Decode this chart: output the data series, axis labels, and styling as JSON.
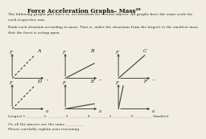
{
  "title": "Force Acceleration Graphs– Mass²⁶",
  "subtitle1": "The following graphs plot force vs. acceleration for several objects. All graphs have the same scale for",
  "subtitle2": "each respective axis.",
  "subtitle3": "Rank each situation according to mass. That is, order the situations from the largest to the smallest mass",
  "subtitle4": "that the force is acting upon.",
  "graphs": [
    {
      "label": "A",
      "slope": 1.3,
      "dashed": true
    },
    {
      "label": "B",
      "slope": 0.65,
      "dashed": false
    },
    {
      "label": "C",
      "slope": 1.1,
      "dashed": false
    },
    {
      "label": "D",
      "slope": 1.3,
      "dashed": true
    },
    {
      "label": "E",
      "slope": 0.22,
      "dashed": false
    },
    {
      "label": "F",
      "slope": 6.0,
      "dashed": false
    }
  ],
  "axis_label_F": "F",
  "axis_label_a": "a",
  "footer_line": "Largest 1 _________ 2. _________ 3. _________ 4. _________ 5. _________ 6. _________ Smallest",
  "footer2": "Or, all the masses are the same. _________",
  "footer3": "Please carefully explain your reasoning.",
  "bg_color": "#f2ede3",
  "line_color": "#444444",
  "axis_color": "#444444",
  "title_fontsize": 5.2,
  "subtitle_fontsize": 3.2,
  "footer_fontsize": 3.2,
  "label_fontsize": 4.0
}
